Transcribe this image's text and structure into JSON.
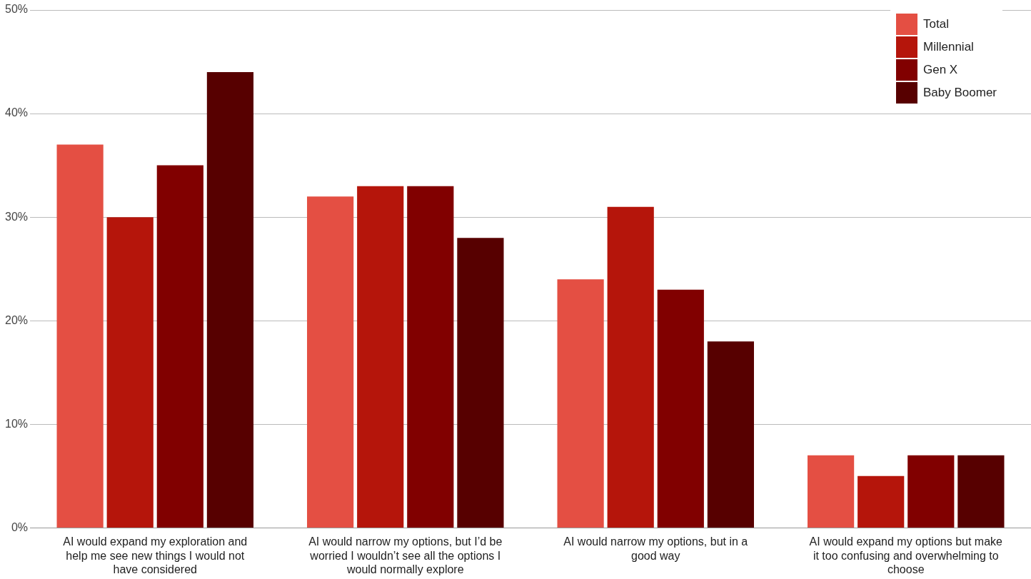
{
  "chart_data": {
    "type": "bar",
    "categories": [
      "AI would expand my exploration and help me see new things I would not have considered",
      "AI would narrow my options, but I’d be worried I wouldn’t see all the options I would normally explore",
      "AI would narrow my options, but in a good way",
      "AI would expand my options but make it too confusing and overwhelming to choose"
    ],
    "series": [
      {
        "name": "Total",
        "color": "#e44f43",
        "values": [
          37,
          32,
          24,
          7
        ]
      },
      {
        "name": "Millennial",
        "color": "#b5150b",
        "values": [
          30,
          33,
          31,
          5
        ]
      },
      {
        "name": "Gen X",
        "color": "#810000",
        "values": [
          35,
          33,
          23,
          7
        ]
      },
      {
        "name": "Baby Boomer",
        "color": "#570000",
        "values": [
          44,
          28,
          18,
          7
        ]
      }
    ],
    "ylim": [
      0,
      50
    ],
    "yticks": [
      {
        "value": 0,
        "label": "0%"
      },
      {
        "value": 10,
        "label": "10%"
      },
      {
        "value": 20,
        "label": "20%"
      },
      {
        "value": 30,
        "label": "30%"
      },
      {
        "value": 40,
        "label": "40%"
      },
      {
        "value": 50,
        "label": "50%"
      }
    ],
    "grid": "y",
    "legend": "top right"
  }
}
